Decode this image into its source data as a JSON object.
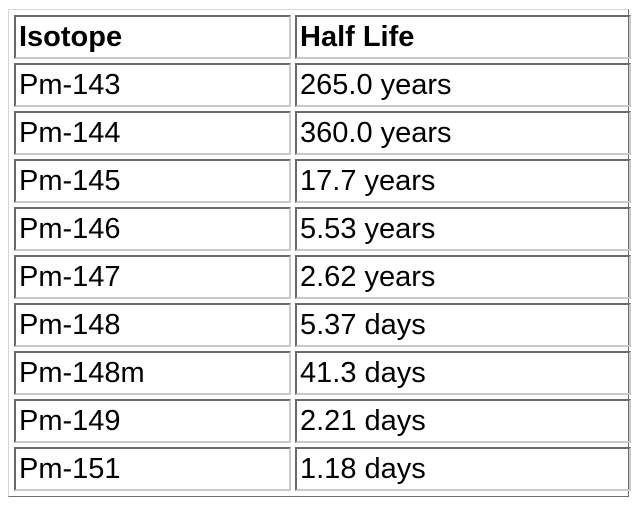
{
  "table": {
    "headers": [
      "Isotope",
      "Half Life"
    ],
    "rows": [
      [
        "Pm-143",
        "265.0 years"
      ],
      [
        "Pm-144",
        "360.0 years"
      ],
      [
        "Pm-145",
        "17.7 years"
      ],
      [
        "Pm-146",
        "5.53 years"
      ],
      [
        "Pm-147",
        "2.62 years"
      ],
      [
        "Pm-148",
        "5.37 days"
      ],
      [
        "Pm-148m",
        "41.3 days"
      ],
      [
        "Pm-149",
        "2.21 days"
      ],
      [
        "Pm-151",
        "1.18 days"
      ]
    ]
  }
}
